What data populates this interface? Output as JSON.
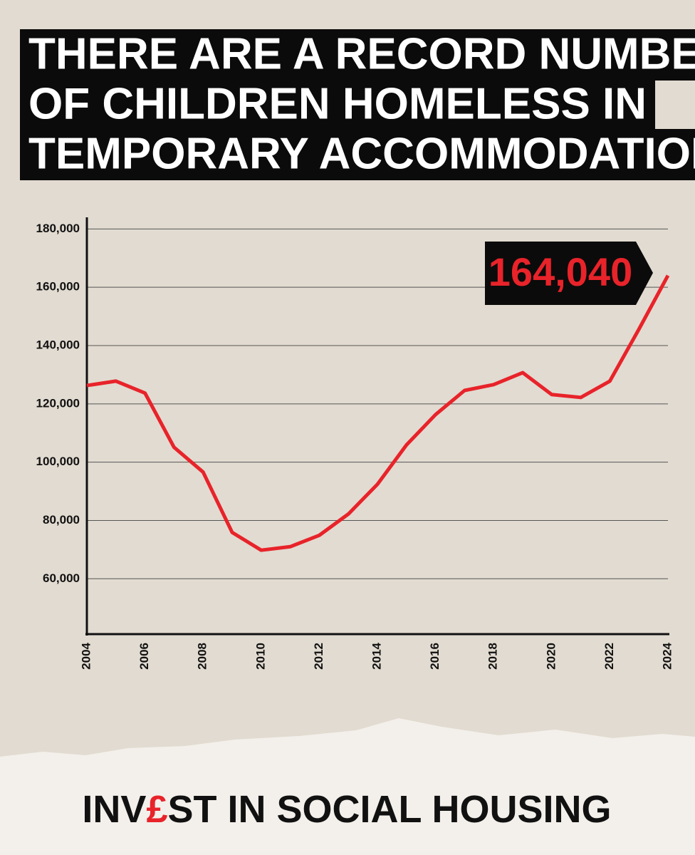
{
  "chart_data": {
    "type": "line",
    "title": [
      "THERE ARE A RECORD NUMBER",
      "OF CHILDREN HOMELESS IN",
      "TEMPORARY ACCOMMODATION"
    ],
    "x": [
      2004,
      2005,
      2006,
      2007,
      2008,
      2009,
      2010,
      2011,
      2012,
      2013,
      2014,
      2015,
      2016,
      2017,
      2018,
      2019,
      2020,
      2021,
      2022,
      2023,
      2024
    ],
    "series": [
      {
        "color": "#e8232a",
        "values": [
          126300,
          127800,
          123700,
          105100,
          96600,
          75900,
          69800,
          71000,
          74900,
          82200,
          92400,
          105900,
          116300,
          124600,
          126600,
          130700,
          123200,
          122200,
          127800,
          145600,
          164040
        ]
      }
    ],
    "annotation": "164,040",
    "xlim": [
      2004,
      2024
    ],
    "xticks": [
      2004,
      2006,
      2008,
      2010,
      2012,
      2014,
      2016,
      2018,
      2020,
      2022,
      2024
    ],
    "ylim": [
      41000,
      184000
    ],
    "yticks": [
      {
        "value": 60000,
        "label": "60,000"
      },
      {
        "value": 80000,
        "label": "80,000"
      },
      {
        "value": 100000,
        "label": "100,000"
      },
      {
        "value": 120000,
        "label": "120,000"
      },
      {
        "value": 140000,
        "label": "140,000"
      },
      {
        "value": 160000,
        "label": "160,000"
      },
      {
        "value": 180000,
        "label": "180,000"
      }
    ],
    "grid": true
  },
  "footer": {
    "before": "INV",
    "highlight": "£",
    "after": "ST IN SOCIAL HOUSING"
  }
}
